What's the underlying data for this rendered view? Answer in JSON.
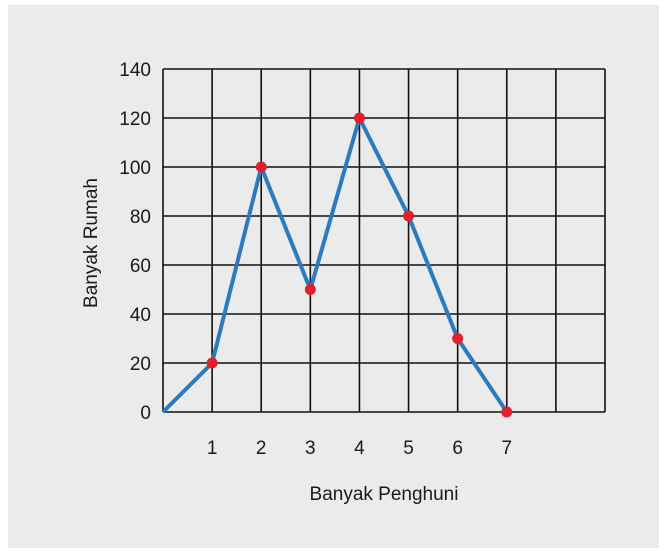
{
  "chart_data": {
    "type": "line",
    "title": "",
    "xlabel": "Banyak Penghuni",
    "ylabel": "Banyak Rumah",
    "x": [
      0,
      1,
      2,
      3,
      4,
      5,
      6,
      7
    ],
    "y": [
      0,
      20,
      100,
      50,
      120,
      80,
      30,
      0
    ],
    "marked_points": [
      1,
      2,
      3,
      4,
      5,
      6,
      7
    ],
    "x_ticks": [
      "1",
      "2",
      "3",
      "4",
      "5",
      "6",
      "7"
    ],
    "y_ticks": [
      "0",
      "20",
      "40",
      "60",
      "80",
      "100",
      "120",
      "140"
    ],
    "xlim": [
      0,
      9
    ],
    "ylim": [
      0,
      140
    ],
    "grid": true,
    "colors": {
      "line": "#2b7bbf",
      "marker": "#e0202e",
      "grid": "#111111",
      "background": "#ebebeb"
    }
  }
}
